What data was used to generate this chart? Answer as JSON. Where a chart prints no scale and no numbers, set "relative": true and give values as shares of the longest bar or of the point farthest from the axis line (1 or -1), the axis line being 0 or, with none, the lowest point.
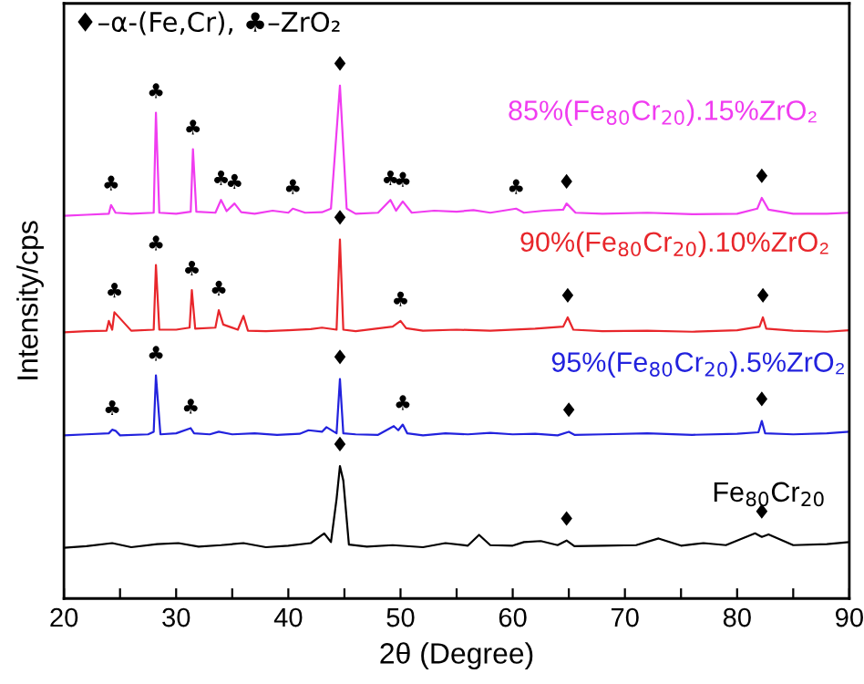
{
  "chart_data": {
    "type": "line",
    "relative": true,
    "xlabel": "2θ (Degree)",
    "ylabel": "Intensity/cps",
    "tick_labels": "x",
    "grid": false,
    "legend": false,
    "marker": "none",
    "line_style": "solid",
    "xlim": [
      20,
      90
    ],
    "xticks": [
      20,
      {
        "value": 25,
        "label": null
      },
      30,
      {
        "value": 35,
        "label": null
      },
      40,
      {
        "value": 45,
        "label": null
      },
      50,
      {
        "value": 55,
        "label": null
      },
      60,
      {
        "value": 65,
        "label": null
      },
      70,
      {
        "value": 75,
        "label": null
      },
      80,
      {
        "value": 85,
        "label": null
      },
      90
    ],
    "series": [
      {
        "name": "Fe$_{80}$Cr$_{20}$",
        "color": "#000000",
        "x": [
          20,
          22,
          24.3,
          26,
          28.3,
          30.2,
          32,
          34,
          36,
          38,
          40,
          42,
          43.2,
          43.8,
          44.3,
          44.6,
          44.9,
          45.4,
          47,
          49.3,
          52,
          54,
          56,
          57,
          58,
          60,
          61,
          62.5,
          64,
          64.8,
          65.5,
          68,
          71,
          73,
          75,
          77,
          79,
          81.6,
          82.2,
          82.8,
          85,
          88,
          90
        ],
        "values": [
          0.099,
          0.102,
          0.108,
          0.1,
          0.106,
          0.108,
          0.101,
          0.104,
          0.108,
          0.1,
          0.103,
          0.108,
          0.127,
          0.11,
          0.194,
          0.258,
          0.23,
          0.105,
          0.101,
          0.104,
          0.1,
          0.108,
          0.103,
          0.124,
          0.104,
          0.103,
          0.11,
          0.112,
          0.104,
          0.113,
          0.102,
          0.103,
          0.104,
          0.117,
          0.103,
          0.108,
          0.104,
          0.127,
          0.12,
          0.125,
          0.104,
          0.106,
          0.11
        ]
      },
      {
        "name": "95%(Fe$_{80}$Cr$_{20}$).5%ZrO₂",
        "color": "#2222dd",
        "x": [
          20,
          22,
          24.0,
          24.3,
          24.6,
          25,
          27.5,
          28.0,
          28.2,
          28.6,
          30,
          31.3,
          31.6,
          33,
          33.8,
          35,
          37,
          39,
          41,
          41.8,
          43,
          43.4,
          44.3,
          44.6,
          44.9,
          46,
          48,
          49.4,
          49.8,
          50.2,
          50.6,
          52,
          54,
          56,
          58,
          60,
          62,
          64,
          65,
          65.5,
          68,
          72,
          76,
          80,
          81.9,
          82.2,
          82.5,
          85,
          88,
          90
        ],
        "values": [
          0.318,
          0.32,
          0.322,
          0.329,
          0.327,
          0.318,
          0.32,
          0.325,
          0.435,
          0.32,
          0.322,
          0.332,
          0.322,
          0.32,
          0.325,
          0.32,
          0.322,
          0.319,
          0.321,
          0.328,
          0.325,
          0.334,
          0.322,
          0.428,
          0.322,
          0.32,
          0.319,
          0.336,
          0.328,
          0.339,
          0.322,
          0.318,
          0.322,
          0.32,
          0.323,
          0.32,
          0.321,
          0.318,
          0.325,
          0.319,
          0.32,
          0.322,
          0.319,
          0.321,
          0.324,
          0.346,
          0.322,
          0.32,
          0.322,
          0.325
        ]
      },
      {
        "name": "90%(Fe$_{80}$Cr$_{20}$).10%ZrO₂",
        "color": "#e8262b",
        "x": [
          20,
          22,
          23.8,
          24.0,
          24.3,
          24.5,
          26,
          28.0,
          28.2,
          28.5,
          30,
          31.2,
          31.4,
          31.7,
          33.5,
          33.8,
          34.2,
          35.5,
          36,
          36.4,
          38,
          40,
          42,
          43,
          44.3,
          44.6,
          44.9,
          46,
          49.3,
          50,
          50.5,
          52,
          55,
          58,
          62,
          64.5,
          64.9,
          65.4,
          68,
          72,
          76,
          80,
          82.0,
          82.3,
          82.6,
          85,
          88,
          90
        ],
        "values": [
          0.519,
          0.521,
          0.522,
          0.541,
          0.524,
          0.558,
          0.522,
          0.524,
          0.65,
          0.524,
          0.524,
          0.528,
          0.601,
          0.526,
          0.528,
          0.562,
          0.534,
          0.524,
          0.551,
          0.522,
          0.521,
          0.523,
          0.525,
          0.528,
          0.524,
          0.7,
          0.524,
          0.521,
          0.53,
          0.541,
          0.527,
          0.522,
          0.524,
          0.522,
          0.526,
          0.53,
          0.548,
          0.524,
          0.521,
          0.522,
          0.52,
          0.523,
          0.53,
          0.548,
          0.526,
          0.522,
          0.52,
          0.523
        ]
      },
      {
        "name": "85%(Fe$_{80}$Cr$_{20}$).15%ZrO₂",
        "color": "#f03cf0",
        "x": [
          20,
          22,
          24.0,
          24.2,
          24.6,
          26,
          28.0,
          28.2,
          28.5,
          30,
          31.3,
          31.5,
          31.8,
          33.5,
          34.0,
          34.5,
          35.2,
          35.8,
          37,
          38.6,
          40,
          40.4,
          41.5,
          43,
          43.8,
          44.6,
          45.2,
          46,
          48,
          49.1,
          49.6,
          50.2,
          51,
          53,
          55,
          56.5,
          58,
          60.3,
          61,
          62.8,
          64.5,
          64.8,
          65.6,
          68,
          72,
          76,
          80,
          81.8,
          82.2,
          82.8,
          85,
          88,
          90
        ],
        "values": [
          0.746,
          0.748,
          0.75,
          0.767,
          0.752,
          0.75,
          0.752,
          0.947,
          0.752,
          0.75,
          0.754,
          0.876,
          0.754,
          0.752,
          0.777,
          0.755,
          0.77,
          0.753,
          0.75,
          0.756,
          0.752,
          0.76,
          0.752,
          0.753,
          0.76,
          1.0,
          0.76,
          0.75,
          0.752,
          0.777,
          0.756,
          0.774,
          0.752,
          0.756,
          0.754,
          0.757,
          0.752,
          0.76,
          0.752,
          0.756,
          0.758,
          0.77,
          0.752,
          0.75,
          0.752,
          0.749,
          0.75,
          0.76,
          0.781,
          0.758,
          0.75,
          0.75,
          0.752
        ]
      }
    ],
    "annotations": [
      "♦–α-(Fe,Cr), ♣–ZrO₂",
      {
        "text": "♣",
        "x": 24.2,
        "y": 0.767
      },
      {
        "text": "♣",
        "x": 28.2,
        "y": 0.947
      },
      {
        "text": "♣",
        "x": 31.5,
        "y": 0.876
      },
      {
        "text": "♣",
        "x": 34.0,
        "y": 0.777
      },
      {
        "text": "♣",
        "x": 35.2,
        "y": 0.77
      },
      {
        "text": "♣",
        "x": 40.4,
        "y": 0.76
      },
      {
        "text": "♦",
        "x": 44.6,
        "y": 1.0
      },
      {
        "text": "♣",
        "x": 49.1,
        "y": 0.777
      },
      {
        "text": "♣",
        "x": 50.2,
        "y": 0.774
      },
      {
        "text": "♣",
        "x": 60.3,
        "y": 0.76
      },
      {
        "text": "♦",
        "x": 64.8,
        "y": 0.77
      },
      {
        "text": "♦",
        "x": 82.2,
        "y": 0.781
      },
      {
        "text": "♣",
        "x": 24.5,
        "y": 0.558
      },
      {
        "text": "♣",
        "x": 28.2,
        "y": 0.65
      },
      {
        "text": "♣",
        "x": 31.4,
        "y": 0.601
      },
      {
        "text": "♣",
        "x": 33.8,
        "y": 0.562
      },
      {
        "text": "♦",
        "x": 44.6,
        "y": 0.7
      },
      {
        "text": "♣",
        "x": 50,
        "y": 0.541
      },
      {
        "text": "♦",
        "x": 64.9,
        "y": 0.548
      },
      {
        "text": "♦",
        "x": 82.3,
        "y": 0.548
      },
      {
        "text": "♣",
        "x": 24.3,
        "y": 0.329
      },
      {
        "text": "♣",
        "x": 28.2,
        "y": 0.435
      },
      {
        "text": "♣",
        "x": 31.3,
        "y": 0.332
      },
      {
        "text": "♦",
        "x": 44.6,
        "y": 0.428
      },
      {
        "text": "♣",
        "x": 50.2,
        "y": 0.339
      },
      {
        "text": "♦",
        "x": 65,
        "y": 0.325
      },
      {
        "text": "♦",
        "x": 82.2,
        "y": 0.346
      },
      {
        "text": "♦",
        "x": 44.6,
        "y": 0.258
      },
      {
        "text": "♦",
        "x": 64.8,
        "y": 0.113
      },
      {
        "text": "♦",
        "x": 82.2,
        "y": 0.127
      }
    ]
  }
}
